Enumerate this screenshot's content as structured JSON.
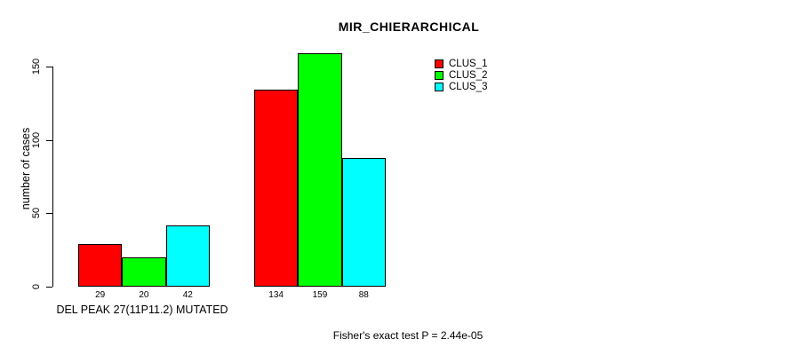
{
  "chart_data": {
    "type": "bar",
    "title": "MIR_CHIERARCHICAL",
    "ylabel": "number of cases",
    "xlabel": "DEL PEAK 27(11P11.2) MUTATED",
    "ylim": [
      0,
      150
    ],
    "yticks": [
      0,
      50,
      100,
      150
    ],
    "categories": [
      "DEL PEAK 27(11P11.2) MUTATED",
      ""
    ],
    "series": [
      {
        "name": "CLUS_1",
        "color": "#ff0000",
        "values": [
          29,
          134
        ]
      },
      {
        "name": "CLUS_2",
        "color": "#00ff00",
        "values": [
          20,
          159
        ]
      },
      {
        "name": "CLUS_3",
        "color": "#00ffff",
        "values": [
          42,
          88
        ]
      }
    ],
    "bar_value_labels": true,
    "legend_position": "top-right",
    "grid": false,
    "axis_color": "#000000",
    "background_color": "#ffffff"
  },
  "footer": {
    "text": "Fisher's exact test P = 2.44e-05"
  }
}
